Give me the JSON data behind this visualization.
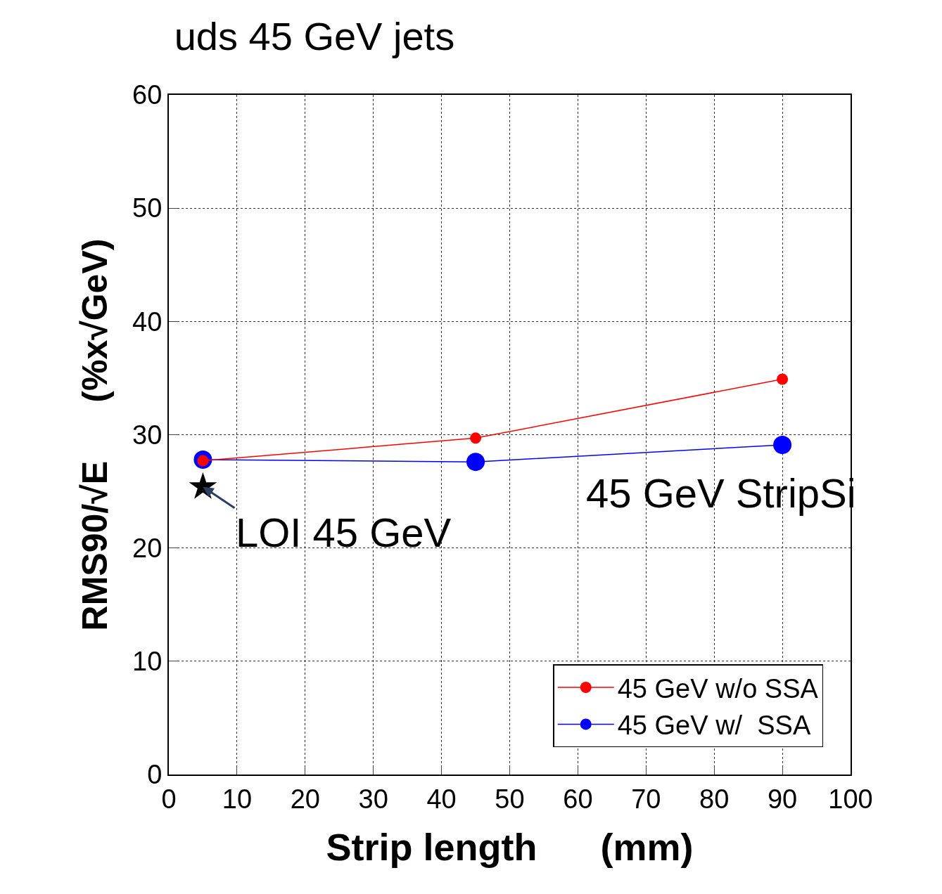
{
  "chart_data": {
    "type": "line",
    "title": "uds 45 GeV jets",
    "xlabel": "Strip length      (mm)",
    "ylabel": "RMS90/√E      (%x√GeV)",
    "xlim": [
      0,
      100
    ],
    "xticks": [
      0,
      10,
      20,
      30,
      40,
      50,
      60,
      70,
      80,
      90,
      100
    ],
    "ylim": [
      0,
      60
    ],
    "yticks": [
      0,
      10,
      20,
      30,
      40,
      50,
      60
    ],
    "grid": true,
    "legend": "bottom right",
    "marker": "circle",
    "line_style": "solid",
    "series": [
      {
        "name": "45 GeV w/o SSA",
        "color": "#ff0000",
        "x": [
          5,
          45,
          90
        ],
        "values": [
          27.7,
          29.7,
          34.9
        ]
      },
      {
        "name": "45 GeV w/  SSA",
        "color": "#0000ff",
        "x": [
          5,
          45,
          90
        ],
        "values": [
          27.8,
          27.6,
          29.1
        ]
      },
      {
        "type": "scatter",
        "marker": "star",
        "color": "#000000",
        "x": [
          5
        ],
        "values": [
          25.4
        ]
      }
    ],
    "annotations": [
      {
        "text": "LOI 45 GeV",
        "x": 5,
        "y": 25.4
      },
      "45 GeV StripSi"
    ]
  }
}
